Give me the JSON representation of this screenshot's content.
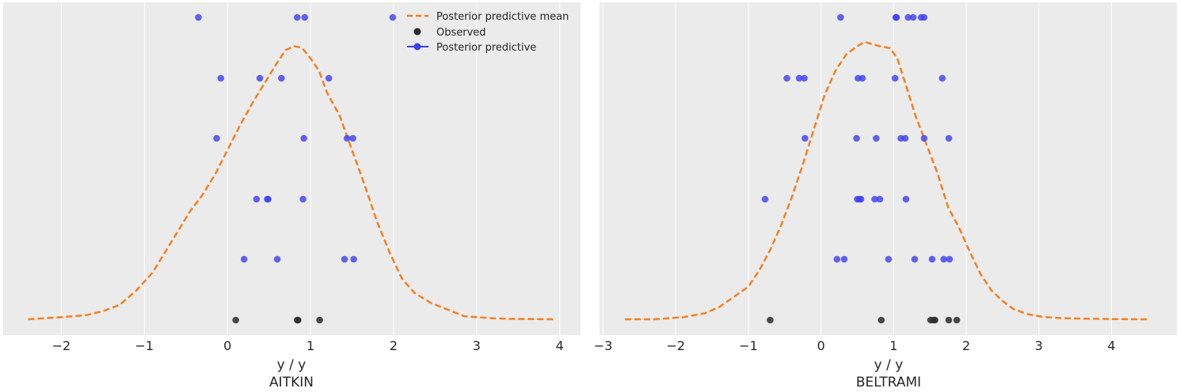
{
  "colors": {
    "panel_bg": "#ebebeb",
    "grid": "#ffffff",
    "mean_line": "#f77f1e",
    "predictive": "#3d3df0",
    "observed": "#2b2b2b"
  },
  "legend": {
    "placement": "top-right of first panel",
    "entries": [
      {
        "label": "Posterior predictive mean",
        "marker": "dashed-line",
        "color": "#f77f1e"
      },
      {
        "label": "Observed",
        "marker": "dot",
        "color": "#2b2b2b"
      },
      {
        "label": "Posterior predictive",
        "marker": "line-dot",
        "color": "#3d3df0"
      }
    ]
  },
  "chart_data": [
    {
      "type": "scatter",
      "title": "AITKIN",
      "xlabel": "y / y",
      "xlim": [
        -2.7,
        4.25
      ],
      "xticks": [
        -2,
        -1,
        0,
        1,
        2,
        3,
        4
      ],
      "xtick_labels": [
        "−2",
        "−1",
        "0",
        "1",
        "2",
        "3",
        "4"
      ],
      "grid": true,
      "rows": 6,
      "observed": [
        0.1,
        0.84,
        0.85,
        1.11
      ],
      "posterior_predictive": [
        [
          0.2,
          0.6,
          1.41,
          1.52
        ],
        [
          0.35,
          0.48,
          0.49,
          0.91
        ],
        [
          -0.13,
          0.92,
          1.44,
          1.51
        ],
        [
          -0.08,
          0.39,
          0.65,
          1.22
        ],
        [
          -0.35,
          0.84,
          0.93,
          1.99
        ]
      ],
      "mean_curve": {
        "x": [
          -2.4,
          -2.0,
          -1.7,
          -1.5,
          -1.3,
          -1.1,
          -0.9,
          -0.75,
          -0.6,
          -0.45,
          -0.3,
          -0.15,
          0,
          0.15,
          0.3,
          0.45,
          0.6,
          0.7,
          0.8,
          0.9,
          1.0,
          1.1,
          1.2,
          1.35,
          1.5,
          1.65,
          1.8,
          1.95,
          2.1,
          2.25,
          2.45,
          2.7,
          2.85,
          3.0,
          3.2,
          3.4,
          3.7,
          3.95
        ],
        "y": [
          0.0,
          0.01,
          0.02,
          0.04,
          0.07,
          0.14,
          0.23,
          0.33,
          0.43,
          0.53,
          0.61,
          0.71,
          0.83,
          0.95,
          1.06,
          1.16,
          1.26,
          1.32,
          1.34,
          1.33,
          1.28,
          1.22,
          1.11,
          1.0,
          0.83,
          0.66,
          0.48,
          0.33,
          0.2,
          0.13,
          0.08,
          0.04,
          0.015,
          0.01,
          0.005,
          0.002,
          0.001,
          0.0
        ]
      }
    },
    {
      "type": "scatter",
      "title": "BELTRAMI",
      "xlabel": "y / y",
      "xlim": [
        -3.05,
        4.9
      ],
      "xticks": [
        -3,
        -2,
        -1,
        0,
        1,
        2,
        3,
        4
      ],
      "xtick_labels": [
        "−3",
        "−2",
        "−1",
        "0",
        "1",
        "2",
        "3",
        "4"
      ],
      "grid": true,
      "rows": 6,
      "observed": [
        -0.7,
        0.83,
        1.51,
        1.55,
        1.57,
        1.76,
        1.87
      ],
      "posterior_predictive": [
        [
          0.22,
          0.32,
          0.93,
          1.29,
          1.53,
          1.69,
          1.77
        ],
        [
          -0.77,
          0.5,
          0.53,
          0.55,
          0.74,
          0.81,
          1.17
        ],
        [
          -0.22,
          0.49,
          0.76,
          1.1,
          1.16,
          1.42,
          1.76
        ],
        [
          -0.47,
          -0.3,
          -0.23,
          0.51,
          0.57,
          1.02,
          1.67
        ],
        [
          0.27,
          1.03,
          1.04,
          1.2,
          1.27,
          1.38,
          1.42
        ]
      ],
      "mean_curve": {
        "x": [
          -2.7,
          -2.3,
          -1.9,
          -1.6,
          -1.4,
          -1.2,
          -1.0,
          -0.85,
          -0.7,
          -0.55,
          -0.4,
          -0.25,
          -0.1,
          0.05,
          0.2,
          0.35,
          0.5,
          0.6,
          0.7,
          0.8,
          0.95,
          1.05,
          1.15,
          1.3,
          1.45,
          1.6,
          1.75,
          1.9,
          2.05,
          2.2,
          2.35,
          2.5,
          2.65,
          2.85,
          3.05,
          3.3,
          3.6,
          4.0,
          4.5
        ],
        "y": [
          0.0,
          0.0,
          0.01,
          0.03,
          0.06,
          0.11,
          0.16,
          0.24,
          0.34,
          0.46,
          0.6,
          0.76,
          0.93,
          1.1,
          1.22,
          1.3,
          1.34,
          1.36,
          1.35,
          1.34,
          1.33,
          1.28,
          1.17,
          1.0,
          0.86,
          0.72,
          0.55,
          0.45,
          0.33,
          0.22,
          0.14,
          0.09,
          0.05,
          0.025,
          0.012,
          0.006,
          0.003,
          0.001,
          0.0
        ]
      }
    }
  ]
}
